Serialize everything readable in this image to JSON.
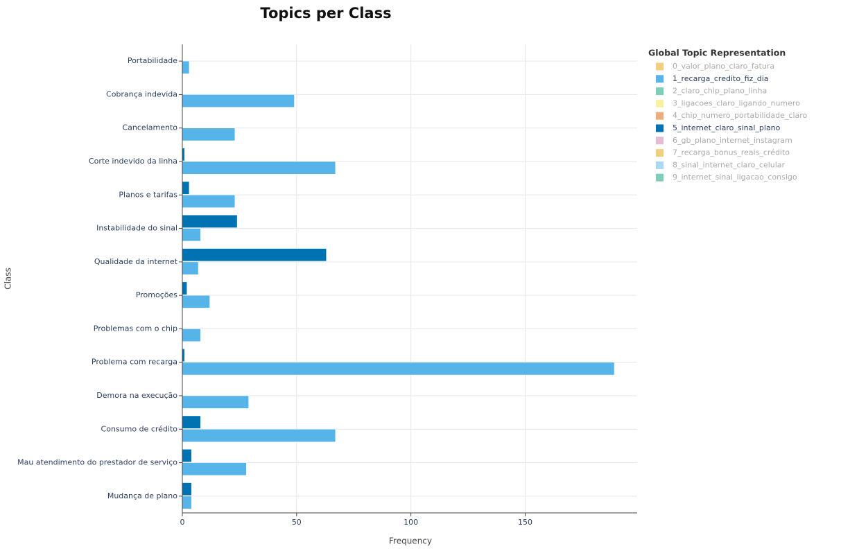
{
  "chart_data": {
    "type": "hbar",
    "title": "Topics per Class",
    "x_label": "Frequency",
    "y_label": "Class",
    "legend_title": "Global Topic Representation",
    "categories": [
      "Portabilidade",
      "Cobrança indevida",
      "Cancelamento",
      "Corte indevido da linha",
      "Planos e tarifas",
      "Instabilidade do sinal",
      "Qualidade da internet",
      "Promoções",
      "Problemas com o chip",
      "Problema com recarga",
      "Demora na execução",
      "Consumo de crédito",
      "Mau atendimento do prestador de serviço",
      "Mudança de plano"
    ],
    "series": [
      {
        "name": "0_valor_plano_claro_fatura",
        "color": "#E69F00",
        "visible": false,
        "values": [
          null,
          null,
          null,
          null,
          null,
          null,
          null,
          null,
          null,
          null,
          null,
          null,
          null,
          null
        ]
      },
      {
        "name": "1_recarga_credito_fiz_dia",
        "color": "#56B4E9",
        "visible": true,
        "values": [
          3,
          49,
          23,
          67,
          23,
          8,
          7,
          12,
          8,
          189,
          29,
          67,
          28,
          4
        ]
      },
      {
        "name": "2_claro_chip_plano_linha",
        "color": "#009E73",
        "visible": false,
        "values": [
          null,
          null,
          null,
          null,
          null,
          null,
          null,
          null,
          null,
          null,
          null,
          null,
          null,
          null
        ]
      },
      {
        "name": "3_ligacoes_claro_ligando_numero",
        "color": "#F0E442",
        "visible": false,
        "values": [
          null,
          null,
          null,
          null,
          null,
          null,
          null,
          null,
          null,
          null,
          null,
          null,
          null,
          null
        ]
      },
      {
        "name": "4_chip_numero_portabilidade_claro",
        "color": "#D55E00",
        "visible": false,
        "values": [
          null,
          null,
          null,
          null,
          null,
          null,
          null,
          null,
          null,
          null,
          null,
          null,
          null,
          null
        ]
      },
      {
        "name": "5_internet_claro_sinal_plano",
        "color": "#0072B2",
        "visible": true,
        "values": [
          null,
          null,
          null,
          1,
          3,
          24,
          63,
          2,
          null,
          1,
          null,
          8,
          4,
          4
        ]
      },
      {
        "name": "6_gb_plano_internet_instagram",
        "color": "#CC79A7",
        "visible": false,
        "values": [
          null,
          null,
          null,
          null,
          null,
          null,
          null,
          null,
          null,
          null,
          null,
          null,
          null,
          null
        ]
      },
      {
        "name": "7_recarga_bonus_reais_crédito",
        "color": "#E69F00",
        "visible": false,
        "values": [
          null,
          null,
          null,
          null,
          null,
          null,
          null,
          null,
          null,
          null,
          null,
          null,
          null,
          null
        ]
      },
      {
        "name": "8_sinal_internet_claro_celular",
        "color": "#56B4E9",
        "visible": false,
        "values": [
          null,
          null,
          null,
          null,
          null,
          null,
          null,
          null,
          null,
          null,
          null,
          null,
          null,
          null
        ]
      },
      {
        "name": "9_internet_sinal_ligacao_consigo",
        "color": "#009E73",
        "visible": false,
        "values": [
          null,
          null,
          null,
          null,
          null,
          null,
          null,
          null,
          null,
          null,
          null,
          null,
          null,
          null
        ]
      }
    ],
    "xlim": [
      0,
      199
    ],
    "xticks": [
      0,
      50,
      100,
      150
    ],
    "grid": true
  }
}
